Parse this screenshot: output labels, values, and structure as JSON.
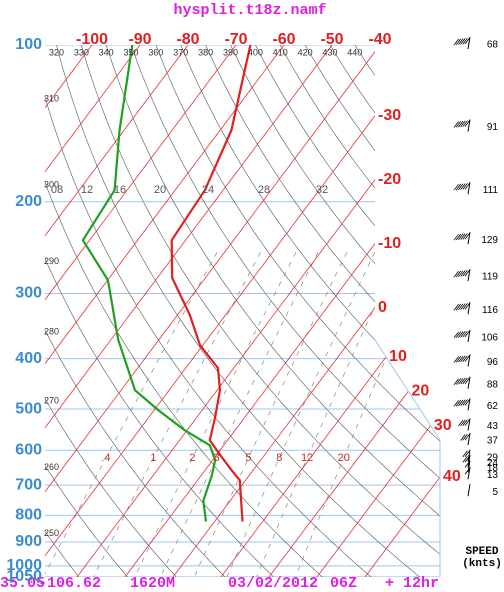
{
  "chart_data": {
    "type": "skewt",
    "title": "hysplit.t18z.namf",
    "ylim": [
      100,
      1050
    ],
    "yticks": [
      100,
      200,
      300,
      400,
      500,
      600,
      700,
      800,
      900,
      1000,
      1050
    ],
    "log_y": true,
    "xticks": [
      -100,
      -90,
      -80,
      -70,
      -60,
      -50,
      -40,
      -30,
      -20,
      -10,
      0,
      10,
      20,
      30,
      40
    ],
    "series": [
      {
        "color": "#e02020",
        "pressure": [
          100,
          146,
          190,
          237,
          280,
          330,
          377,
          417,
          460,
          520,
          574,
          612,
          656,
          685,
          822
        ],
        "values": [
          -67,
          -57.6,
          -53.8,
          -52.9,
          -46.9,
          -37.4,
          -30.6,
          -23.3,
          -19.4,
          -16.1,
          -13.7,
          -9.3,
          -4.4,
          -1.2,
          5.8
        ]
      },
      {
        "color": "#20a020",
        "pressure": [
          100,
          146,
          190,
          237,
          283,
          368,
          460,
          502,
          549,
          587,
          626,
          670,
          750,
          822
        ],
        "values": [
          -91.6,
          -80.9,
          -72.6,
          -71.4,
          -59.9,
          -48.5,
          -37.1,
          -29.2,
          -20.5,
          -12.9,
          -9.5,
          -7.8,
          -5.6,
          -1.8
        ]
      }
    ],
    "theta_top": [
      320,
      330,
      340,
      350,
      360,
      370,
      380,
      390,
      400,
      410,
      420,
      430,
      440
    ],
    "theta_left": [
      310,
      300,
      290,
      280,
      270,
      260,
      250
    ],
    "mixing_ratio": [
      {
        "value": 0.4,
        "label": ".4"
      },
      1,
      2,
      3,
      5,
      8,
      12,
      20
    ],
    "moist_labels": [
      {
        "value": 8,
        "label": "08"
      },
      12,
      16,
      20,
      24,
      28,
      32
    ],
    "wind": {
      "label": "SPEED",
      "unit": "(knts)",
      "pressure": [
        100,
        144,
        190,
        237,
        279,
        323,
        365,
        407,
        449,
        494,
        540,
        576,
        620,
        635,
        650,
        670,
        722
      ],
      "speeds": [
        68,
        91,
        111,
        129,
        119,
        116,
        106,
        96,
        88,
        62,
        43,
        37,
        29,
        24,
        18,
        13,
        5
      ]
    },
    "footer": {
      "lat": "35.05",
      "lon": "-106.62",
      "elevation": "1620M",
      "date": "03/02/2012",
      "time": "06Z",
      "forecast": "+ 12hr"
    }
  }
}
